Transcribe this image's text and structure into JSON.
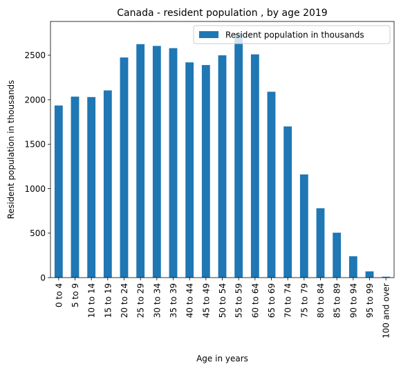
{
  "chart_data": {
    "type": "bar",
    "title": "Canada - resident population , by age 2019",
    "xlabel": "Age in years",
    "ylabel": "Resident population in thousands",
    "categories": [
      "0 to 4",
      "5 to 9",
      "10 to 14",
      "15 to 19",
      "20 to 24",
      "25 to 29",
      "30 to 34",
      "35 to 39",
      "40 to 44",
      "45 to 49",
      "50 to 54",
      "55 to 59",
      "60 to 64",
      "65 to 69",
      "70 to 74",
      "75 to 79",
      "80 to 84",
      "85 to 89",
      "90 to 94",
      "95 to 99",
      "100 and over"
    ],
    "series": [
      {
        "name": "Resident population in thousands",
        "color": "#1f77b4",
        "values": [
          1935,
          2035,
          2030,
          2105,
          2475,
          2625,
          2605,
          2580,
          2420,
          2390,
          2500,
          2745,
          2510,
          2090,
          1700,
          1160,
          780,
          505,
          240,
          70,
          10
        ]
      }
    ],
    "ylim": [
      0,
      2880
    ],
    "yticks": [
      0,
      500,
      1000,
      1500,
      2000,
      2500
    ],
    "grid": false,
    "legend_position": "top-right"
  }
}
